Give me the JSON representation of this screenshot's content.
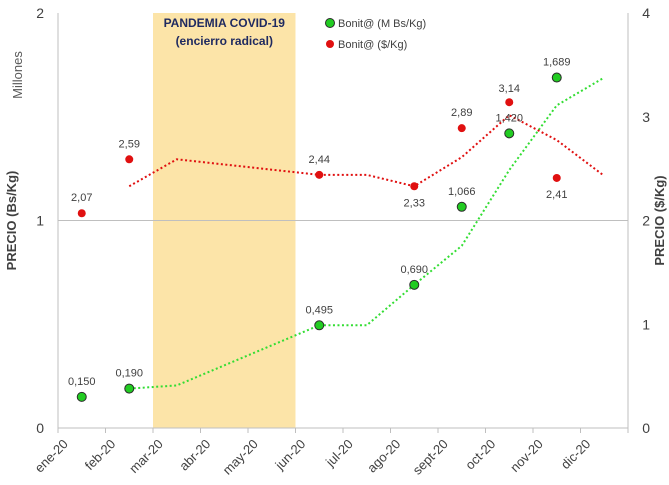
{
  "chart_data": {
    "type": "line",
    "x_categories": [
      "ene-20",
      "feb-20",
      "mar-20",
      "abr-20",
      "may-20",
      "jun-20",
      "jul-20",
      "ago-20",
      "sept-20",
      "oct-20",
      "nov-20",
      "dic-20"
    ],
    "units_label": "Millones",
    "y_left": {
      "label": "PRECIO (Bs/Kg)",
      "range": [
        0,
        2
      ],
      "ticks": [
        "0",
        "1",
        "2"
      ]
    },
    "y_right": {
      "label": "PRECIO ($/Kg)",
      "range": [
        0,
        4
      ],
      "ticks": [
        "0",
        "1",
        "2",
        "3",
        "4"
      ]
    },
    "highlight_band": {
      "from": "mar-20",
      "to": "jun-20",
      "line1": "PANDEMIA COVID-19",
      "line2": "(encierro radical)",
      "color": "#fce4a8"
    },
    "legend_position": "top",
    "series": [
      {
        "name": "Bonit@ (M Bs/Kg)",
        "axis": "left",
        "marker_color": "#22cc22",
        "points": [
          {
            "x": "ene-20",
            "y": 0.15,
            "label": "0,150"
          },
          {
            "x": "feb-20",
            "y": 0.19,
            "label": "0,190"
          },
          {
            "x": "jun-20",
            "y": 0.495,
            "label": "0,495"
          },
          {
            "x": "ago-20",
            "y": 0.69,
            "label": "0,690"
          },
          {
            "x": "sept-20",
            "y": 1.066,
            "label": "1,066"
          },
          {
            "x": "oct-20",
            "y": 1.42,
            "label": "1,420"
          },
          {
            "x": "nov-20",
            "y": 1.689,
            "label": "1,689"
          }
        ]
      },
      {
        "name": "Bonit@ ($/Kg)",
        "axis": "right",
        "marker_color": "#e01010",
        "points": [
          {
            "x": "ene-20",
            "y": 2.07,
            "label": "2,07"
          },
          {
            "x": "feb-20",
            "y": 2.59,
            "label": "2,59"
          },
          {
            "x": "jun-20",
            "y": 2.44,
            "label": "2,44"
          },
          {
            "x": "ago-20",
            "y": 2.33,
            "label": "2,33"
          },
          {
            "x": "sept-20",
            "y": 2.89,
            "label": "2,89"
          },
          {
            "x": "oct-20",
            "y": 3.14,
            "label": "3,14"
          },
          {
            "x": "nov-20",
            "y": 2.41,
            "label": "2,41"
          }
        ]
      }
    ],
    "trendlines": [
      {
        "series": "Bonit@ (M Bs/Kg)",
        "axis": "left",
        "style": "dotted",
        "color": "#33dd33",
        "points": [
          {
            "x": 1.5,
            "y": 0.19
          },
          {
            "x": 2.5,
            "y": 0.205
          },
          {
            "x": 5.5,
            "y": 0.495
          },
          {
            "x": 6.5,
            "y": 0.495
          },
          {
            "x": 7.5,
            "y": 0.69
          },
          {
            "x": 8.5,
            "y": 0.878
          },
          {
            "x": 9.5,
            "y": 1.243
          },
          {
            "x": 10.5,
            "y": 1.555
          },
          {
            "x": 11.5,
            "y": 1.689
          }
        ]
      },
      {
        "series": "Bonit@ ($/Kg)",
        "axis": "right",
        "style": "dotted",
        "color": "#e01010",
        "points": [
          {
            "x": 1.5,
            "y": 2.33
          },
          {
            "x": 2.5,
            "y": 2.59
          },
          {
            "x": 5.5,
            "y": 2.44
          },
          {
            "x": 6.5,
            "y": 2.44
          },
          {
            "x": 7.5,
            "y": 2.33
          },
          {
            "x": 8.5,
            "y": 2.61
          },
          {
            "x": 9.5,
            "y": 3.015
          },
          {
            "x": 10.5,
            "y": 2.775
          },
          {
            "x": 11.5,
            "y": 2.43
          }
        ]
      }
    ]
  }
}
